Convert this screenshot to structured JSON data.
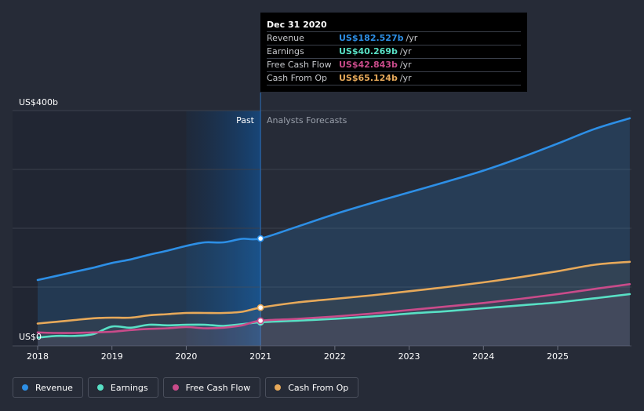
{
  "chart_data": {
    "type": "line",
    "y_axis": {
      "top_label": "US$400b",
      "bottom_label": "US$0",
      "ylim": [
        0,
        400
      ]
    },
    "x_axis": {
      "ticks": [
        "2018",
        "2019",
        "2020",
        "2021",
        "2022",
        "2023",
        "2024",
        "2025"
      ]
    },
    "divider_label_past": "Past",
    "divider_label_forecast": "Analysts Forecasts",
    "grid": true,
    "series": [
      {
        "key": "revenue",
        "name": "Revenue",
        "color": "#2d8fe6",
        "x": [
          2018.0,
          2018.25,
          2018.5,
          2018.75,
          2019.0,
          2019.25,
          2019.5,
          2019.75,
          2020.0,
          2020.25,
          2020.5,
          2020.75,
          2021.0,
          2021.5,
          2022.0,
          2022.5,
          2023.0,
          2023.5,
          2024.0,
          2024.5,
          2025.0,
          2025.5,
          2025.97
        ],
        "y": [
          112,
          119,
          126,
          133,
          141,
          147,
          155,
          162,
          170,
          176,
          176,
          182,
          182.527,
          203,
          224,
          243,
          261,
          279,
          298,
          320,
          344,
          369,
          387
        ]
      },
      {
        "key": "earnings",
        "name": "Earnings",
        "color": "#58e0c5",
        "x": [
          2018.0,
          2018.25,
          2018.5,
          2018.75,
          2019.0,
          2019.25,
          2019.5,
          2019.75,
          2020.0,
          2020.25,
          2020.5,
          2020.75,
          2021.0,
          2021.5,
          2022.0,
          2022.5,
          2023.0,
          2023.5,
          2024.0,
          2024.5,
          2025.0,
          2025.5,
          2025.97
        ],
        "y": [
          14,
          17,
          17,
          20,
          33,
          31,
          36,
          35,
          36,
          36,
          34,
          37,
          40.269,
          43,
          46,
          50,
          55,
          59,
          64,
          69,
          74,
          81,
          88
        ]
      },
      {
        "key": "fcf",
        "name": "Free Cash Flow",
        "color": "#c94b8a",
        "x": [
          2018.0,
          2018.25,
          2018.5,
          2018.75,
          2019.0,
          2019.25,
          2019.5,
          2019.75,
          2020.0,
          2020.25,
          2020.5,
          2020.75,
          2021.0,
          2021.5,
          2022.0,
          2022.5,
          2023.0,
          2023.5,
          2024.0,
          2024.5,
          2025.0,
          2025.5,
          2025.97
        ],
        "y": [
          23,
          22,
          22,
          23,
          24,
          27,
          29,
          30,
          32,
          30,
          31,
          35,
          42.843,
          46,
          50,
          55,
          61,
          67,
          73,
          80,
          88,
          97,
          105
        ]
      },
      {
        "key": "cfo",
        "name": "Cash From Op",
        "color": "#e7a95a",
        "x": [
          2018.0,
          2018.25,
          2018.5,
          2018.75,
          2019.0,
          2019.25,
          2019.5,
          2019.75,
          2020.0,
          2020.25,
          2020.5,
          2020.75,
          2021.0,
          2021.5,
          2022.0,
          2022.5,
          2023.0,
          2023.5,
          2024.0,
          2024.5,
          2025.0,
          2025.5,
          2025.97
        ],
        "y": [
          38,
          41,
          44,
          47,
          48,
          48,
          52,
          54,
          56,
          56,
          56,
          58,
          65.124,
          74,
          80,
          86,
          93,
          100,
          108,
          117,
          127,
          138,
          143
        ]
      }
    ]
  },
  "tooltip": {
    "date": "Dec 31 2020",
    "unit": "/yr",
    "rows": [
      {
        "key": "revenue",
        "label": "Revenue",
        "value": "US$182.527b",
        "color": "#2d8fe6"
      },
      {
        "key": "earnings",
        "label": "Earnings",
        "value": "US$40.269b",
        "color": "#58e0c5"
      },
      {
        "key": "fcf",
        "label": "Free Cash Flow",
        "value": "US$42.843b",
        "color": "#c94b8a"
      },
      {
        "key": "cfo",
        "label": "Cash From Op",
        "value": "US$65.124b",
        "color": "#e7a95a"
      }
    ]
  },
  "legend": [
    {
      "key": "revenue",
      "label": "Revenue",
      "color": "#2d8fe6"
    },
    {
      "key": "earnings",
      "label": "Earnings",
      "color": "#58e0c5"
    },
    {
      "key": "fcf",
      "label": "Free Cash Flow",
      "color": "#c94b8a"
    },
    {
      "key": "cfo",
      "label": "Cash From Op",
      "color": "#e7a95a"
    }
  ]
}
